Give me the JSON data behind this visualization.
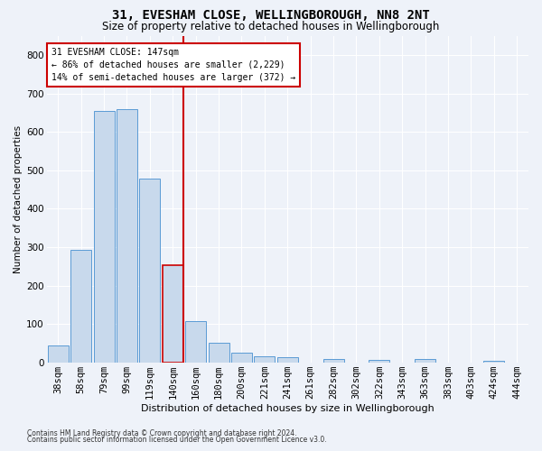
{
  "title": "31, EVESHAM CLOSE, WELLINGBOROUGH, NN8 2NT",
  "subtitle": "Size of property relative to detached houses in Wellingborough",
  "xlabel": "Distribution of detached houses by size in Wellingborough",
  "ylabel": "Number of detached properties",
  "categories": [
    "38sqm",
    "58sqm",
    "79sqm",
    "99sqm",
    "119sqm",
    "140sqm",
    "160sqm",
    "180sqm",
    "200sqm",
    "221sqm",
    "241sqm",
    "261sqm",
    "282sqm",
    "302sqm",
    "322sqm",
    "343sqm",
    "363sqm",
    "383sqm",
    "403sqm",
    "424sqm",
    "444sqm"
  ],
  "values": [
    45,
    293,
    655,
    660,
    478,
    252,
    108,
    50,
    25,
    15,
    13,
    0,
    8,
    0,
    7,
    0,
    9,
    0,
    0,
    5,
    0
  ],
  "bar_color": "#c8d9ec",
  "bar_edge_color": "#5b9bd5",
  "highlight_bar_index": 5,
  "highlight_bar_edge_color": "#cc0000",
  "vline_color": "#cc0000",
  "property_label": "31 EVESHAM CLOSE: 147sqm",
  "annotation_line1": "← 86% of detached houses are smaller (2,229)",
  "annotation_line2": "14% of semi-detached houses are larger (372) →",
  "annotation_box_color": "#ffffff",
  "annotation_box_edge_color": "#cc0000",
  "footnote1": "Contains HM Land Registry data © Crown copyright and database right 2024.",
  "footnote2": "Contains public sector information licensed under the Open Government Licence v3.0.",
  "bg_color": "#eef2f9",
  "grid_color": "#ffffff",
  "ylim": [
    0,
    850
  ],
  "yticks": [
    0,
    100,
    200,
    300,
    400,
    500,
    600,
    700,
    800
  ],
  "title_fontsize": 10,
  "subtitle_fontsize": 8.5,
  "xlabel_fontsize": 8,
  "ylabel_fontsize": 7.5,
  "tick_fontsize": 7.5,
  "annot_fontsize": 7,
  "footnote_fontsize": 5.5
}
